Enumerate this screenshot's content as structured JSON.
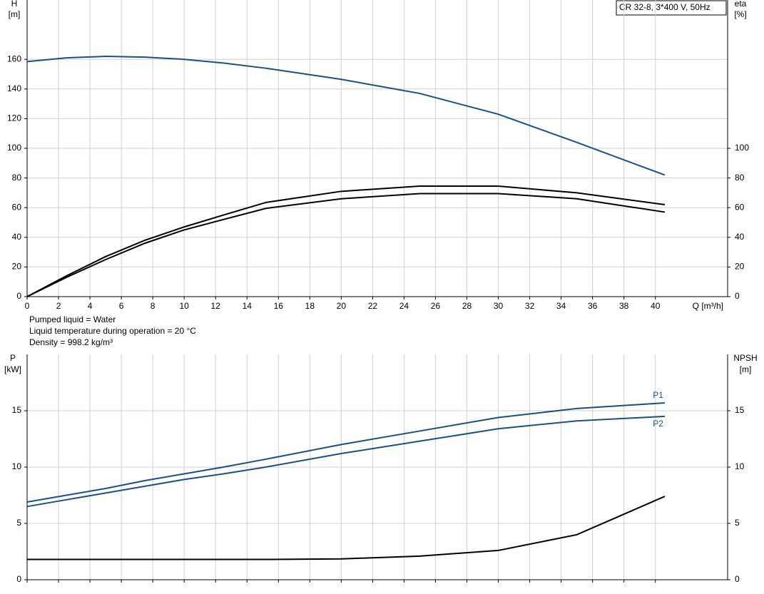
{
  "chart_data": [
    {
      "type": "line",
      "title": "CR 32-8, 3*400 V, 50Hz",
      "y_label": "H",
      "y_unit": "[m]",
      "y2_label": "eta",
      "y2_unit": "[%]",
      "x_label": "Q [m³/h]",
      "annotations": [
        "Pumped liquid = Water",
        "Liquid temperature during operation = 20 °C",
        "Density = 998.2 kg/m³"
      ],
      "x": [
        0,
        2.5,
        5,
        7.5,
        10,
        12.5,
        15.2,
        20,
        25,
        30,
        35,
        40.6
      ],
      "xlim": [
        0,
        44.6
      ],
      "xticks": [
        0,
        2,
        4,
        6,
        8,
        10,
        12,
        14,
        16,
        18,
        20,
        22,
        24,
        26,
        28,
        30,
        32,
        34,
        36,
        38,
        40
      ],
      "ylim": [
        0,
        200
      ],
      "yticks": [
        0,
        20,
        40,
        60,
        80,
        100,
        120,
        140,
        160
      ],
      "y2lim": [
        0,
        200
      ],
      "y2ticks": [
        0,
        20,
        40,
        60,
        80,
        100
      ],
      "grid": true,
      "series": [
        {
          "color": "#1a4f8a",
          "values": [
            158.5,
            161,
            162,
            161.5,
            160,
            157.5,
            154,
            146.5,
            137,
            123,
            104,
            82
          ]
        },
        {
          "color": "#000000",
          "axis": "y2",
          "values": [
            0,
            14,
            27,
            38,
            47,
            55,
            63.5,
            71,
            74.5,
            74.5,
            70,
            62
          ]
        },
        {
          "color": "#000000",
          "axis": "y2",
          "values": [
            0,
            13,
            25,
            36,
            45,
            52,
            59.5,
            66,
            69.5,
            69.5,
            66,
            57
          ]
        }
      ]
    },
    {
      "type": "line",
      "y_label": "P",
      "y_unit": "[kW]",
      "y2_label": "NPSH",
      "y2_unit": "[m]",
      "x": [
        0,
        2.5,
        5,
        7.5,
        10,
        12.5,
        15.2,
        20,
        25,
        30,
        35,
        40.6
      ],
      "xlim": [
        0,
        44.6
      ],
      "xticks": [
        0,
        2,
        4,
        6,
        8,
        10,
        12,
        14,
        16,
        18,
        20,
        22,
        24,
        26,
        28,
        30,
        32,
        34,
        36,
        38,
        40
      ],
      "ylim": [
        0,
        20
      ],
      "yticks": [
        0,
        5,
        10,
        15
      ],
      "y2lim": [
        0,
        20
      ],
      "y2ticks": [
        0,
        5,
        10,
        15
      ],
      "grid": true,
      "series": [
        {
          "name": "P1",
          "color": "#1a4f8a",
          "values": [
            6.9,
            7.5,
            8.1,
            8.8,
            9.4,
            10.0,
            10.7,
            12.0,
            13.2,
            14.4,
            15.2,
            15.7
          ]
        },
        {
          "name": "P2",
          "color": "#1a4f8a",
          "values": [
            6.5,
            7.1,
            7.7,
            8.3,
            8.9,
            9.4,
            10.0,
            11.2,
            12.3,
            13.4,
            14.1,
            14.5
          ]
        },
        {
          "color": "#000000",
          "axis": "y2",
          "values": [
            1.8,
            1.8,
            1.8,
            1.8,
            1.8,
            1.8,
            1.8,
            1.85,
            2.1,
            2.6,
            4.0,
            7.4
          ]
        }
      ]
    }
  ]
}
